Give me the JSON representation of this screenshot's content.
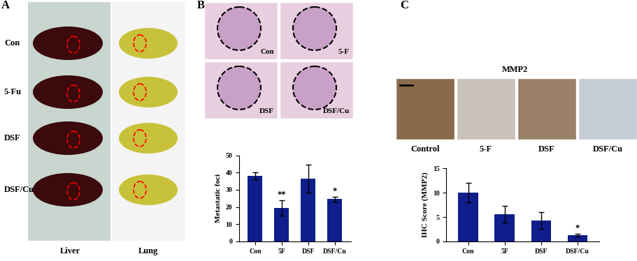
{
  "panels": {
    "A": {
      "label": "A",
      "rows": [
        "Con",
        "5-Fu",
        "DSF",
        "DSF/Cu"
      ],
      "columns": [
        "Liver",
        "Lung"
      ]
    },
    "B": {
      "label": "B",
      "image_labels": [
        "Con",
        "5-F",
        "DSF",
        "DSF/Cu"
      ]
    },
    "C": {
      "label": "C",
      "title": "MMP2",
      "image_labels": [
        "Control",
        "5-F",
        "DSF",
        "DSF/Cu"
      ]
    }
  },
  "chart_data": [
    {
      "type": "bar",
      "y_label": "Metastatic foci",
      "categories": [
        "Con",
        "5F",
        "DSF",
        "DSF/Cu"
      ],
      "values": [
        38,
        19.5,
        36.5,
        24.5
      ],
      "errors": [
        2,
        4.5,
        8,
        1.5
      ],
      "annotations": [
        null,
        "**",
        null,
        "*"
      ],
      "color": "#0f1e8c",
      "ylim": [
        0,
        50
      ],
      "yticks": [
        0,
        10,
        20,
        30,
        40,
        50
      ],
      "grid": false
    },
    {
      "type": "bar",
      "y_label": "IHC Score (MMP2)",
      "categories": [
        "Con",
        "5F",
        "DSF",
        "DSF/Cu"
      ],
      "values": [
        10,
        5.6,
        4.3,
        1.3
      ],
      "errors": [
        2,
        1.7,
        1.7,
        0.3
      ],
      "annotations": [
        null,
        null,
        null,
        "*"
      ],
      "color": "#0f1e8c",
      "ylim": [
        0,
        15
      ],
      "yticks": [
        0,
        5,
        10,
        15
      ],
      "grid": false
    }
  ]
}
